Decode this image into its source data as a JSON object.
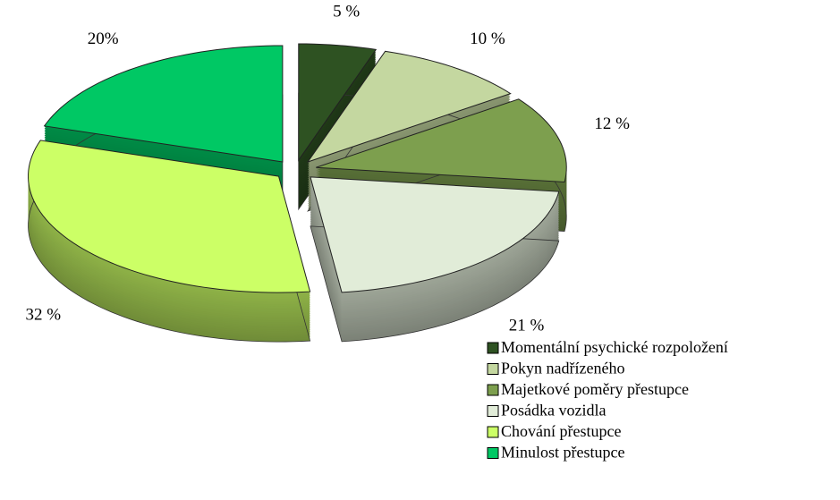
{
  "chart_data": {
    "type": "pie3d",
    "categories": [
      "Momentální psychické rozpoložení",
      "Pokyn nadřízeného",
      "Majetkové poměry přestupce",
      "Posádka vozidla",
      "Chování přestupce",
      "Minulost přestupce"
    ],
    "values": [
      5,
      10,
      12,
      21,
      32,
      20
    ],
    "value_labels": [
      "5 %",
      "10 %",
      "12 %",
      "21 %",
      "32 %",
      "20%"
    ],
    "colors": [
      "#2e5222",
      "#c4d7a0",
      "#7d9f4e",
      "#e1ecd8",
      "#ccff66",
      "#00c864"
    ],
    "legend": "bottom-right"
  }
}
